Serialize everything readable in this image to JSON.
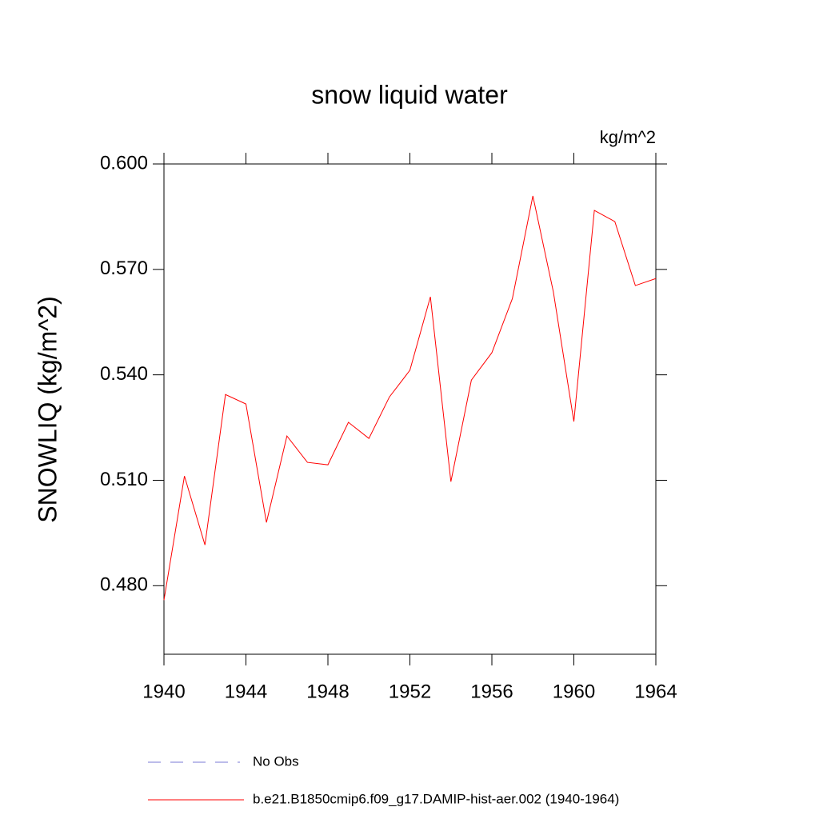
{
  "chart_data": {
    "type": "line",
    "title": "snow liquid water",
    "units": "kg/m^2",
    "y_label": "SNOWLIQ  (kg/m^2)",
    "x": [
      1940,
      1941,
      1942,
      1943,
      1944,
      1945,
      1946,
      1947,
      1948,
      1949,
      1950,
      1951,
      1952,
      1953,
      1954,
      1955,
      1956,
      1957,
      1958,
      1959,
      1960,
      1961,
      1962,
      1963,
      1964
    ],
    "series": [
      {
        "name": "b.e21.B1850cmip6.f09_g17.DAMIP-hist-aer.002 (1940-1964)",
        "color": "#ff0000",
        "values": [
          0.4759,
          0.5112,
          0.4916,
          0.5344,
          0.5317,
          0.498,
          0.5226,
          0.5151,
          0.5144,
          0.5265,
          0.5219,
          0.5337,
          0.5413,
          0.5622,
          0.5096,
          0.5385,
          0.5463,
          0.5617,
          0.5909,
          0.5636,
          0.5267,
          0.5868,
          0.5836,
          0.5654,
          0.5674
        ]
      }
    ],
    "reference": {
      "name": "No Obs",
      "color": "#7a7ad6",
      "dashed": true
    },
    "xlim": [
      1940,
      1964
    ],
    "xticks": [
      1940,
      1944,
      1948,
      1952,
      1956,
      1960,
      1964
    ],
    "ylim": [
      0.4605,
      0.6
    ],
    "yticks": [
      {
        "value": 0.48,
        "label": "0.480"
      },
      {
        "value": 0.51,
        "label": "0.510"
      },
      {
        "value": 0.54,
        "label": "0.540"
      },
      {
        "value": 0.57,
        "label": "0.570"
      },
      {
        "value": 0.6,
        "label": "0.600"
      }
    ]
  }
}
